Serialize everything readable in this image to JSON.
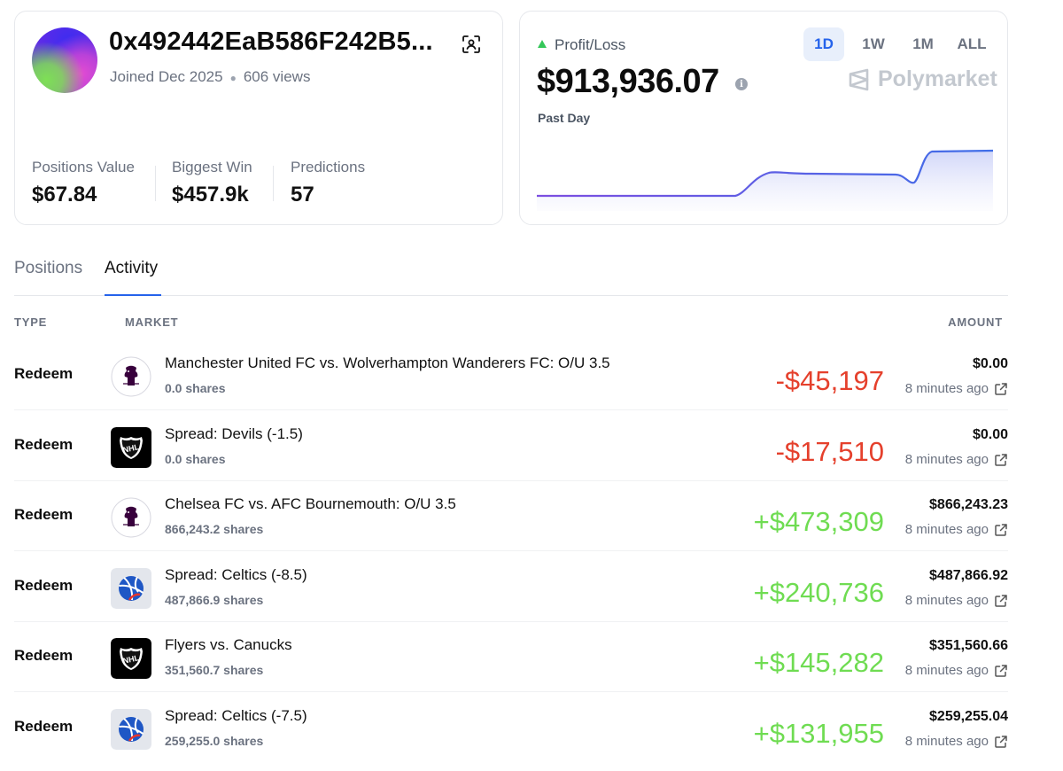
{
  "profile": {
    "wallet": "0x492442EaB586F242B5...",
    "joined": "Joined Dec 2025",
    "views": "606 views",
    "stats": [
      {
        "label": "Positions Value",
        "value": "$67.84"
      },
      {
        "label": "Biggest Win",
        "value": "$457.9k"
      },
      {
        "label": "Predictions",
        "value": "57"
      }
    ]
  },
  "pnl": {
    "label": "Profit/Loss",
    "value": "$913,936.07",
    "period": "Past Day",
    "brand": "Polymarket",
    "ranges": [
      "1D",
      "1W",
      "1M",
      "ALL"
    ],
    "active_range": "1D",
    "up_color": "#34c759",
    "line_color": "#5b5ce8"
  },
  "tabs": [
    "Positions",
    "Activity"
  ],
  "active_tab": "Activity",
  "table": {
    "headers": {
      "type": "TYPE",
      "market": "MARKET",
      "amount": "AMOUNT"
    },
    "rows": [
      {
        "type": "Redeem",
        "icon": "premier-league-icon",
        "title": "Manchester United FC vs. Wolverhampton Wanderers FC: O/U 3.5",
        "shares": "0.0 shares",
        "pnl": "-$45,197",
        "amount": "$0.00",
        "time": "8 minutes ago"
      },
      {
        "type": "Redeem",
        "icon": "nhl-icon",
        "title": "Spread: Devils (-1.5)",
        "shares": "0.0 shares",
        "pnl": "-$17,510",
        "amount": "$0.00",
        "time": "8 minutes ago"
      },
      {
        "type": "Redeem",
        "icon": "premier-league-icon",
        "title": "Chelsea FC vs. AFC Bournemouth: O/U 3.5",
        "shares": "866,243.2 shares",
        "pnl": "+$473,309",
        "amount": "$866,243.23",
        "time": "8 minutes ago"
      },
      {
        "type": "Redeem",
        "icon": "basketball-icon",
        "title": "Spread: Celtics (-8.5)",
        "shares": "487,866.9 shares",
        "pnl": "+$240,736",
        "amount": "$487,866.92",
        "time": "8 minutes ago"
      },
      {
        "type": "Redeem",
        "icon": "nhl-icon",
        "title": "Flyers vs. Canucks",
        "shares": "351,560.7 shares",
        "pnl": "+$145,282",
        "amount": "$351,560.66",
        "time": "8 minutes ago"
      },
      {
        "type": "Redeem",
        "icon": "basketball-icon",
        "title": "Spread: Celtics (-7.5)",
        "shares": "259,255.0 shares",
        "pnl": "+$131,955",
        "amount": "$259,255.04",
        "time": "8 minutes ago"
      }
    ],
    "loss_color": "#e5402c",
    "gain_color": "#6fdc52"
  }
}
